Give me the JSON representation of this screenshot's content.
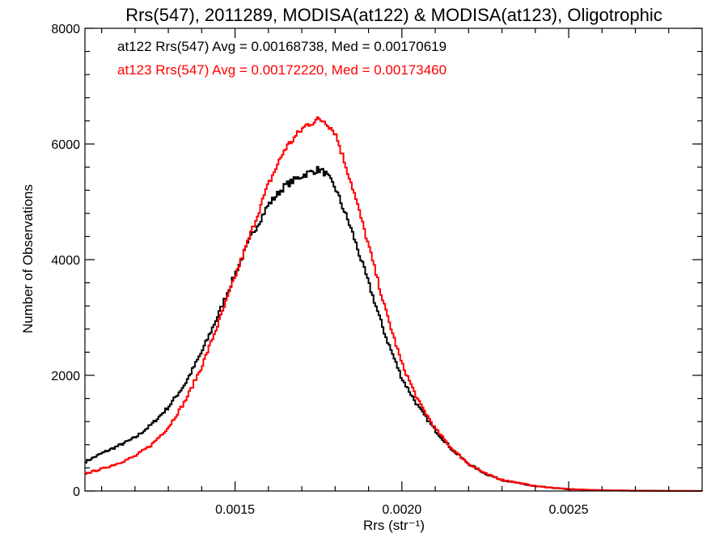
{
  "chart_data": {
    "type": "line",
    "title": "Rrs(547), 2011289, MODISA(at122) & MODISA(at123), Oligotrophic",
    "xlabel": "Rrs (str⁻¹)",
    "ylabel": "Number of Observations",
    "xlim": [
      0.00105,
      0.0029
    ],
    "ylim": [
      0,
      8000
    ],
    "x_ticks": [
      0.0015,
      0.002,
      0.0025
    ],
    "x_tick_labels": [
      "0.0015",
      "0.0020",
      "0.0025"
    ],
    "y_ticks": [
      0,
      2000,
      4000,
      6000,
      8000
    ],
    "y_tick_labels": [
      "0",
      "2000",
      "4000",
      "6000",
      "8000"
    ],
    "grid": false,
    "step": true,
    "annotations": [
      {
        "text": "at122 Rrs(547) Avg = 0.00168738, Med = 0.00170619",
        "color": "#000000"
      },
      {
        "text": "at123 Rrs(547) Avg = 0.00172220, Med = 0.00173460",
        "color": "#ff0000"
      }
    ],
    "series": [
      {
        "color": "#000000",
        "x": [
          0.00105,
          0.0011,
          0.00115,
          0.0012,
          0.00125,
          0.0013,
          0.00135,
          0.0014,
          0.00145,
          0.0015,
          0.00155,
          0.0016,
          0.00165,
          0.0017,
          0.00172,
          0.00175,
          0.00177,
          0.0018,
          0.00185,
          0.0019,
          0.00195,
          0.002,
          0.00205,
          0.0021,
          0.00215,
          0.0022,
          0.00225,
          0.0023,
          0.0024,
          0.0025,
          0.0026,
          0.0027,
          0.0028,
          0.0029
        ],
        "values": [
          500,
          650,
          780,
          920,
          1150,
          1450,
          1850,
          2400,
          3050,
          3750,
          4420,
          4950,
          5280,
          5450,
          5500,
          5560,
          5500,
          5250,
          4500,
          3600,
          2700,
          1950,
          1450,
          1050,
          720,
          470,
          300,
          190,
          80,
          30,
          12,
          5,
          2,
          0
        ]
      },
      {
        "color": "#ff0000",
        "x": [
          0.00105,
          0.0011,
          0.00115,
          0.0012,
          0.00125,
          0.0013,
          0.00135,
          0.0014,
          0.00145,
          0.0015,
          0.00155,
          0.0016,
          0.00165,
          0.0017,
          0.00172,
          0.00175,
          0.00177,
          0.0018,
          0.00185,
          0.0019,
          0.00195,
          0.002,
          0.00205,
          0.0021,
          0.00215,
          0.0022,
          0.00225,
          0.0023,
          0.0024,
          0.0025,
          0.0026,
          0.0027,
          0.0028,
          0.0029
        ],
        "values": [
          300,
          380,
          480,
          600,
          800,
          1100,
          1550,
          2150,
          2900,
          3700,
          4500,
          5300,
          5920,
          6250,
          6350,
          6420,
          6400,
          6200,
          5300,
          4250,
          3150,
          2200,
          1550,
          1080,
          730,
          470,
          300,
          195,
          85,
          32,
          12,
          5,
          2,
          0
        ]
      }
    ]
  }
}
